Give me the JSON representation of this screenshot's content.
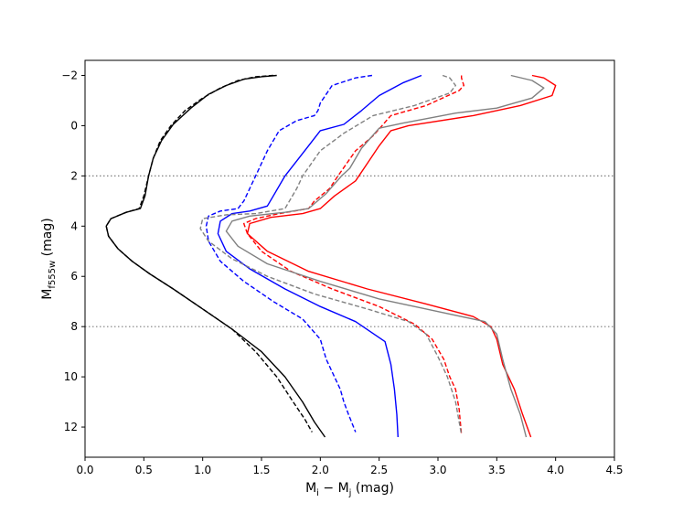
{
  "chart_data": {
    "type": "line",
    "xlabel": {
      "main": "M",
      "sub1": "i",
      "mid": " − M",
      "sub2": "j",
      "unit": " (mag)"
    },
    "ylabel": {
      "main": "M",
      "sub": "f555w",
      "unit": " (mag)"
    },
    "xlim": [
      0.0,
      4.5
    ],
    "ylim": [
      13.2,
      -2.6
    ],
    "y_inverted": true,
    "xticks": [
      0.0,
      0.5,
      1.0,
      1.5,
      2.0,
      2.5,
      3.0,
      3.5,
      4.0,
      4.5
    ],
    "xtick_labels": [
      "0.0",
      "0.5",
      "1.0",
      "1.5",
      "2.0",
      "2.5",
      "3.0",
      "3.5",
      "4.0",
      "4.5"
    ],
    "yticks": [
      -2,
      0,
      2,
      4,
      6,
      8,
      10,
      12
    ],
    "ytick_labels": [
      "−2",
      "0",
      "2",
      "4",
      "6",
      "8",
      "10",
      "12"
    ],
    "reference_lines": [
      {
        "y": 2,
        "color": "#808080",
        "style": "dotted"
      },
      {
        "y": 8,
        "color": "#808080",
        "style": "dotted"
      }
    ],
    "series": [
      {
        "color": "#000000",
        "style": "solid",
        "points": [
          [
            1.63,
            -2.0
          ],
          [
            1.5,
            -1.95
          ],
          [
            1.35,
            -1.85
          ],
          [
            1.2,
            -1.6
          ],
          [
            1.05,
            -1.25
          ],
          [
            0.9,
            -0.7
          ],
          [
            0.75,
            -0.05
          ],
          [
            0.65,
            0.6
          ],
          [
            0.58,
            1.3
          ],
          [
            0.54,
            2.0
          ],
          [
            0.51,
            2.8
          ],
          [
            0.47,
            3.3
          ],
          [
            0.35,
            3.45
          ],
          [
            0.22,
            3.7
          ],
          [
            0.18,
            4.0
          ],
          [
            0.2,
            4.4
          ],
          [
            0.28,
            4.9
          ],
          [
            0.4,
            5.4
          ],
          [
            0.55,
            5.9
          ],
          [
            0.75,
            6.5
          ],
          [
            1.0,
            7.3
          ],
          [
            1.25,
            8.1
          ],
          [
            1.5,
            9.0
          ],
          [
            1.7,
            10.0
          ],
          [
            1.85,
            11.0
          ],
          [
            1.95,
            11.8
          ],
          [
            2.04,
            12.4
          ]
        ]
      },
      {
        "color": "#000000",
        "style": "dashed",
        "points": [
          [
            1.6,
            -2.0
          ],
          [
            1.45,
            -1.95
          ],
          [
            1.3,
            -1.8
          ],
          [
            1.15,
            -1.5
          ],
          [
            1.0,
            -1.1
          ],
          [
            0.85,
            -0.6
          ],
          [
            0.73,
            0.0
          ],
          [
            0.64,
            0.6
          ],
          [
            0.58,
            1.3
          ],
          [
            0.54,
            2.0
          ],
          [
            0.5,
            2.8
          ],
          [
            0.46,
            3.3
          ],
          [
            0.35,
            3.45
          ],
          [
            0.22,
            3.7
          ],
          [
            0.18,
            4.0
          ],
          [
            0.2,
            4.4
          ],
          [
            0.28,
            4.9
          ],
          [
            0.4,
            5.4
          ],
          [
            0.55,
            5.9
          ],
          [
            0.75,
            6.5
          ],
          [
            1.0,
            7.3
          ],
          [
            1.25,
            8.1
          ],
          [
            1.45,
            9.0
          ],
          [
            1.63,
            10.0
          ],
          [
            1.77,
            11.0
          ],
          [
            1.87,
            11.7
          ],
          [
            1.93,
            12.2
          ]
        ]
      },
      {
        "color": "#0000ff",
        "style": "solid",
        "points": [
          [
            2.86,
            -2.0
          ],
          [
            2.7,
            -1.7
          ],
          [
            2.5,
            -1.2
          ],
          [
            2.35,
            -0.6
          ],
          [
            2.2,
            -0.05
          ],
          [
            2.0,
            0.2
          ],
          [
            1.9,
            0.8
          ],
          [
            1.8,
            1.4
          ],
          [
            1.7,
            2.0
          ],
          [
            1.6,
            2.8
          ],
          [
            1.55,
            3.2
          ],
          [
            1.4,
            3.4
          ],
          [
            1.25,
            3.5
          ],
          [
            1.15,
            3.8
          ],
          [
            1.13,
            4.3
          ],
          [
            1.2,
            5.0
          ],
          [
            1.4,
            5.7
          ],
          [
            1.7,
            6.5
          ],
          [
            2.0,
            7.2
          ],
          [
            2.3,
            7.8
          ],
          [
            2.55,
            8.6
          ],
          [
            2.6,
            9.5
          ],
          [
            2.63,
            10.5
          ],
          [
            2.65,
            11.5
          ],
          [
            2.66,
            12.4
          ]
        ]
      },
      {
        "color": "#0000ff",
        "style": "dashed",
        "points": [
          [
            2.44,
            -2.0
          ],
          [
            2.3,
            -1.9
          ],
          [
            2.1,
            -1.6
          ],
          [
            2.0,
            -0.9
          ],
          [
            1.98,
            -0.6
          ],
          [
            1.95,
            -0.4
          ],
          [
            1.8,
            -0.2
          ],
          [
            1.65,
            0.2
          ],
          [
            1.55,
            1.0
          ],
          [
            1.45,
            2.0
          ],
          [
            1.35,
            3.0
          ],
          [
            1.3,
            3.3
          ],
          [
            1.15,
            3.4
          ],
          [
            1.05,
            3.6
          ],
          [
            1.03,
            4.0
          ],
          [
            1.05,
            4.6
          ],
          [
            1.15,
            5.4
          ],
          [
            1.35,
            6.2
          ],
          [
            1.6,
            7.0
          ],
          [
            1.85,
            7.7
          ],
          [
            2.0,
            8.5
          ],
          [
            2.05,
            9.3
          ],
          [
            2.12,
            10.0
          ],
          [
            2.17,
            10.5
          ],
          [
            2.2,
            11.0
          ],
          [
            2.24,
            11.5
          ],
          [
            2.3,
            12.2
          ]
        ]
      },
      {
        "color": "#ff0000",
        "style": "solid",
        "points": [
          [
            3.8,
            -2.0
          ],
          [
            3.9,
            -1.9
          ],
          [
            4.0,
            -1.6
          ],
          [
            3.97,
            -1.2
          ],
          [
            3.7,
            -0.8
          ],
          [
            3.3,
            -0.4
          ],
          [
            2.75,
            0.0
          ],
          [
            2.6,
            0.2
          ],
          [
            2.5,
            0.8
          ],
          [
            2.4,
            1.5
          ],
          [
            2.3,
            2.2
          ],
          [
            2.12,
            2.8
          ],
          [
            2.0,
            3.3
          ],
          [
            1.85,
            3.5
          ],
          [
            1.58,
            3.65
          ],
          [
            1.4,
            3.9
          ],
          [
            1.38,
            4.3
          ],
          [
            1.55,
            5.0
          ],
          [
            1.9,
            5.8
          ],
          [
            2.4,
            6.5
          ],
          [
            2.9,
            7.1
          ],
          [
            3.3,
            7.6
          ],
          [
            3.45,
            8.0
          ],
          [
            3.5,
            8.5
          ],
          [
            3.55,
            9.5
          ],
          [
            3.65,
            10.5
          ],
          [
            3.72,
            11.5
          ],
          [
            3.79,
            12.4
          ]
        ]
      },
      {
        "color": "#ff0000",
        "style": "dashed",
        "points": [
          [
            3.2,
            -2.0
          ],
          [
            3.2,
            -1.9
          ],
          [
            3.22,
            -1.6
          ],
          [
            3.18,
            -1.4
          ],
          [
            2.9,
            -0.8
          ],
          [
            2.6,
            -0.4
          ],
          [
            2.45,
            0.4
          ],
          [
            2.3,
            1.0
          ],
          [
            2.15,
            2.0
          ],
          [
            2.08,
            2.5
          ],
          [
            1.95,
            3.0
          ],
          [
            1.9,
            3.3
          ],
          [
            1.65,
            3.5
          ],
          [
            1.45,
            3.7
          ],
          [
            1.35,
            3.9
          ],
          [
            1.38,
            4.3
          ],
          [
            1.5,
            5.0
          ],
          [
            1.75,
            5.8
          ],
          [
            2.1,
            6.5
          ],
          [
            2.5,
            7.2
          ],
          [
            2.8,
            7.9
          ],
          [
            2.95,
            8.5
          ],
          [
            3.05,
            9.3
          ],
          [
            3.1,
            10.0
          ],
          [
            3.15,
            10.5
          ],
          [
            3.18,
            11.3
          ],
          [
            3.2,
            12.3
          ]
        ]
      },
      {
        "color": "#808080",
        "style": "solid",
        "points": [
          [
            3.62,
            -2.0
          ],
          [
            3.8,
            -1.8
          ],
          [
            3.9,
            -1.5
          ],
          [
            3.8,
            -1.1
          ],
          [
            3.5,
            -0.7
          ],
          [
            3.15,
            -0.5
          ],
          [
            2.7,
            -0.1
          ],
          [
            2.5,
            0.1
          ],
          [
            2.35,
            0.9
          ],
          [
            2.25,
            1.7
          ],
          [
            2.18,
            2.0
          ],
          [
            2.05,
            2.7
          ],
          [
            1.9,
            3.3
          ],
          [
            1.7,
            3.45
          ],
          [
            1.4,
            3.6
          ],
          [
            1.25,
            3.8
          ],
          [
            1.2,
            4.2
          ],
          [
            1.3,
            4.8
          ],
          [
            1.55,
            5.5
          ],
          [
            2.0,
            6.2
          ],
          [
            2.5,
            6.9
          ],
          [
            3.0,
            7.4
          ],
          [
            3.4,
            7.8
          ],
          [
            3.5,
            8.3
          ],
          [
            3.55,
            9.3
          ],
          [
            3.62,
            10.5
          ],
          [
            3.7,
            11.5
          ],
          [
            3.75,
            12.4
          ]
        ]
      },
      {
        "color": "#808080",
        "style": "dashed",
        "points": [
          [
            3.04,
            -2.0
          ],
          [
            3.1,
            -1.9
          ],
          [
            3.15,
            -1.6
          ],
          [
            3.1,
            -1.3
          ],
          [
            2.8,
            -0.8
          ],
          [
            2.45,
            -0.4
          ],
          [
            2.2,
            0.3
          ],
          [
            2.0,
            1.0
          ],
          [
            1.85,
            2.0
          ],
          [
            1.8,
            2.5
          ],
          [
            1.7,
            3.3
          ],
          [
            1.45,
            3.5
          ],
          [
            1.2,
            3.55
          ],
          [
            1.0,
            3.7
          ],
          [
            0.98,
            4.1
          ],
          [
            1.05,
            4.6
          ],
          [
            1.25,
            5.3
          ],
          [
            1.55,
            6.0
          ],
          [
            1.95,
            6.7
          ],
          [
            2.4,
            7.3
          ],
          [
            2.75,
            7.8
          ],
          [
            2.9,
            8.3
          ],
          [
            3.0,
            9.2
          ],
          [
            3.08,
            10.0
          ],
          [
            3.15,
            11.0
          ],
          [
            3.2,
            12.3
          ]
        ]
      }
    ]
  }
}
